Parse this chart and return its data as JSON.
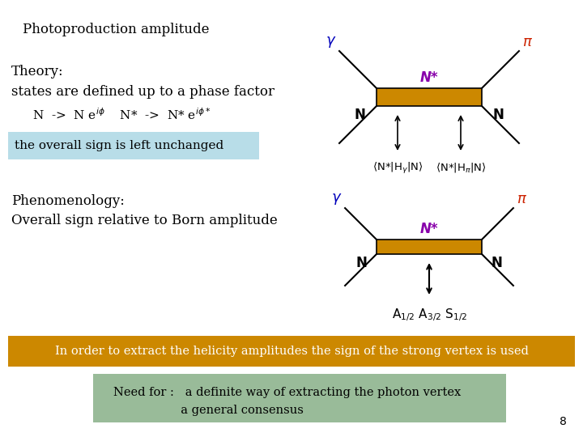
{
  "bg_color": "#ffffff",
  "title_text": "Photoproduction amplitude",
  "theory_line1": "Theory:",
  "theory_line2": "states are defined up to a phase factor",
  "theory_line3": "N  ->  N eⁱᵠ    N*  ->  N* eⁱᵠ*",
  "box1_text": "the overall sign is left unchanged",
  "box1_color": "#b8dde8",
  "pheno_line1": "Phenomenology:",
  "pheno_line2": "Overall sign relative to Born amplitude",
  "box2_text": "In order to extract the helicity amplitudes the sign of the strong vertex is used",
  "box2_color": "#cc8800",
  "box3_line1": "Need for :   a definite way of extracting the photon vertex",
  "box3_line2": "                   a general consensus",
  "box3_color": "#99bb99",
  "page_num": "8",
  "gamma_color": "#0000bb",
  "pi_color": "#cc2200",
  "Nstar_color": "#8800aa",
  "N_color": "#000000",
  "diagram_rect_color": "#cc8800"
}
